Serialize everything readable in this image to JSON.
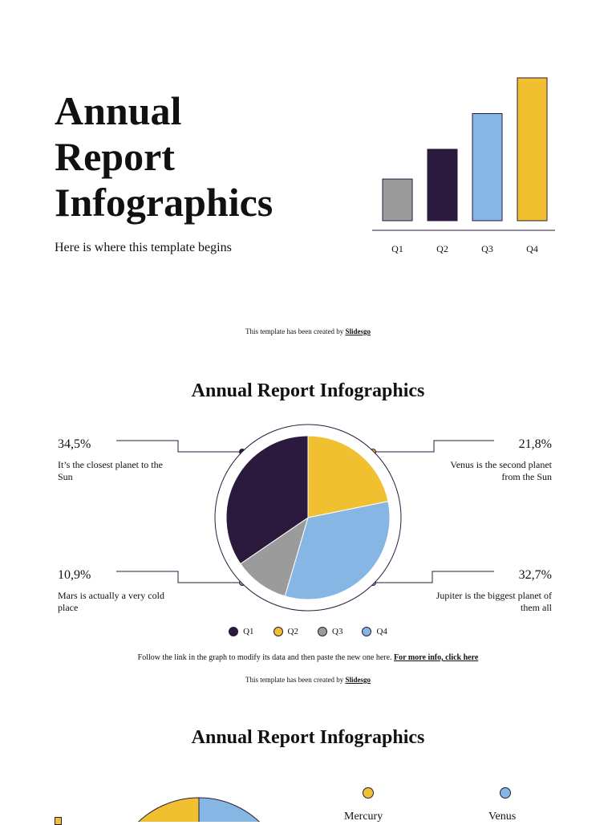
{
  "colors": {
    "purple": "#2b1a3d",
    "yellow": "#f0c030",
    "blue": "#85b6e4",
    "gray": "#9b9b9b"
  },
  "slide1": {
    "title_lines": [
      "Annual",
      "Report",
      "Infographics"
    ],
    "subtitle": "Here is where this template begins",
    "credit_prefix": "This template has been created by",
    "credit_link": "Slidesgo"
  },
  "chart_data": [
    {
      "type": "bar",
      "categories": [
        "Q1",
        "Q2",
        "Q3",
        "Q4"
      ],
      "values": [
        1.4,
        2.4,
        3.6,
        4.8
      ],
      "colors": [
        "#9b9b9b",
        "#2b1a3d",
        "#85b6e4",
        "#f0c030"
      ],
      "ylim": [
        0,
        4.8
      ]
    },
    {
      "type": "pie",
      "categories": [
        "Q1",
        "Q2",
        "Q3",
        "Q4"
      ],
      "values": [
        34.5,
        21.8,
        10.9,
        32.7
      ],
      "colors": [
        "#2b1a3d",
        "#f0c030",
        "#9b9b9b",
        "#85b6e4"
      ]
    }
  ],
  "slide2": {
    "title": "Annual Report Infographics",
    "callouts": {
      "tl": {
        "pct": "34,5%",
        "text": "It’s the closest planet to the Sun"
      },
      "tr": {
        "pct": "21,8%",
        "text": "Venus is the second planet from the Sun"
      },
      "bl": {
        "pct": "10,9%",
        "text": "Mars is actually a very cold place"
      },
      "br": {
        "pct": "32,7%",
        "text": "Jupiter is the biggest planet of them all"
      }
    },
    "legend": [
      "Q1",
      "Q2",
      "Q3",
      "Q4"
    ],
    "note": "Follow the link in the graph to modify its data and then paste the new one here.",
    "note_link": "For more info, click here",
    "credit_prefix": "This template has been created by",
    "credit_link": "Slidesgo"
  },
  "slide3": {
    "title": "Annual Report Infographics",
    "labels": [
      "Mercury",
      "Venus"
    ]
  }
}
